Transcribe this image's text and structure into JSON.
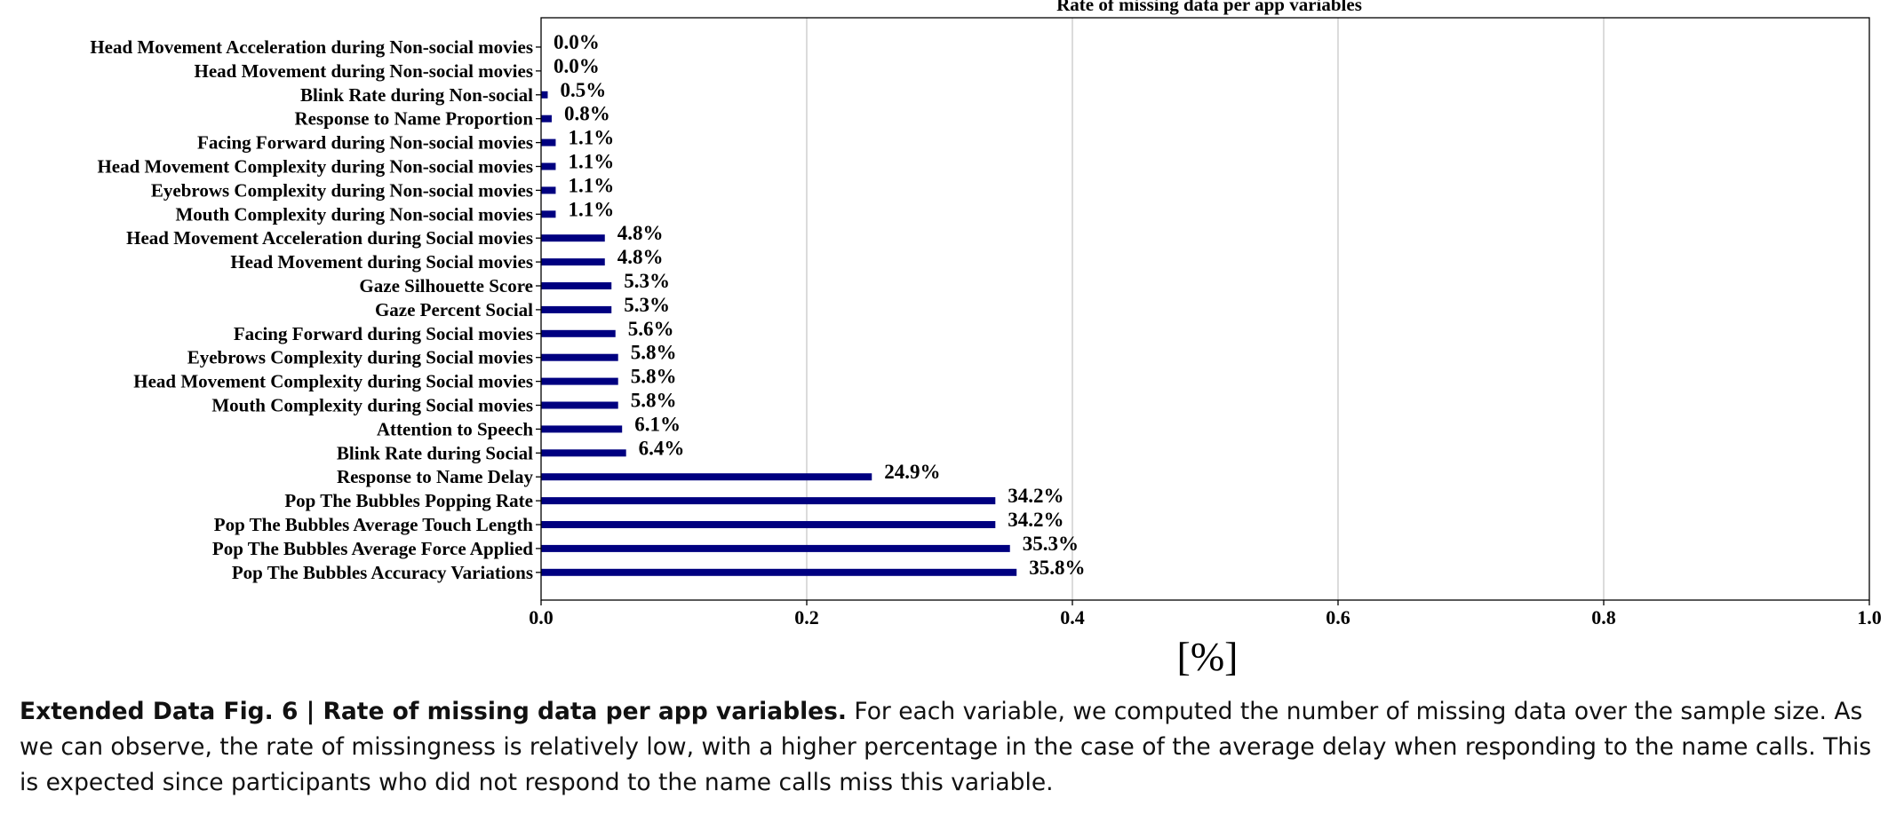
{
  "chart_data": {
    "type": "bar",
    "orientation": "horizontal",
    "title": "Rate of missing data per app variables",
    "xlabel": "[%]",
    "ylabel": "",
    "xlim": [
      0,
      1.0
    ],
    "xticks": [
      "0.0",
      "0.2",
      "0.4",
      "0.6",
      "0.8",
      "1.0"
    ],
    "grid": "vertical",
    "bar_color": "#000080",
    "categories": [
      "Head Movement  Acceleration during Non-social movies",
      "Head Movement  during Non-social movies",
      "Blink Rate during Non-social",
      "Response to Name Proportion",
      "Facing Forward during Non-social movies",
      "Head Movement  Complexity during Non-social movies",
      "Eyebrows Complexity during Non-social movies",
      "Mouth Complexity during Non-social movies",
      "Head Movement  Acceleration during Social movies",
      "Head Movement  during Social movies",
      "Gaze Silhouette Score",
      "Gaze Percent Social",
      "Facing Forward during Social movies",
      "Eyebrows Complexity during Social movies",
      "Head Movement  Complexity during Social movies",
      "Mouth Complexity during Social movies",
      "Attention to Speech",
      "Blink Rate during Social",
      "Response to Name Delay",
      "Pop The Bubbles Popping Rate",
      "Pop The Bubbles Average Touch Length",
      "Pop The Bubbles Average Force Applied",
      "Pop The Bubbles Accuracy Variations"
    ],
    "values": [
      0.0,
      0.0,
      0.005,
      0.008,
      0.011,
      0.011,
      0.011,
      0.011,
      0.048,
      0.048,
      0.053,
      0.053,
      0.056,
      0.058,
      0.058,
      0.058,
      0.061,
      0.064,
      0.249,
      0.342,
      0.342,
      0.353,
      0.358
    ],
    "data_labels": [
      "0.0%",
      "0.0%",
      "0.5%",
      "0.8%",
      "1.1%",
      "1.1%",
      "1.1%",
      "1.1%",
      "4.8%",
      "4.8%",
      "5.3%",
      "5.3%",
      "5.6%",
      "5.8%",
      "5.8%",
      "5.8%",
      "6.1%",
      "6.4%",
      "24.9%",
      "34.2%",
      "34.2%",
      "35.3%",
      "35.8%"
    ]
  },
  "caption": {
    "lead": "Extended Data Fig. 6 | Rate of missing data per app variables.",
    "body": " For each variable, we computed the number of missing data over the sample size. As we can observe, the rate of missingness is relatively low, with a higher percentage in the case of the average delay when responding to the name calls. This is expected since participants who did not respond to the name calls miss this variable."
  }
}
